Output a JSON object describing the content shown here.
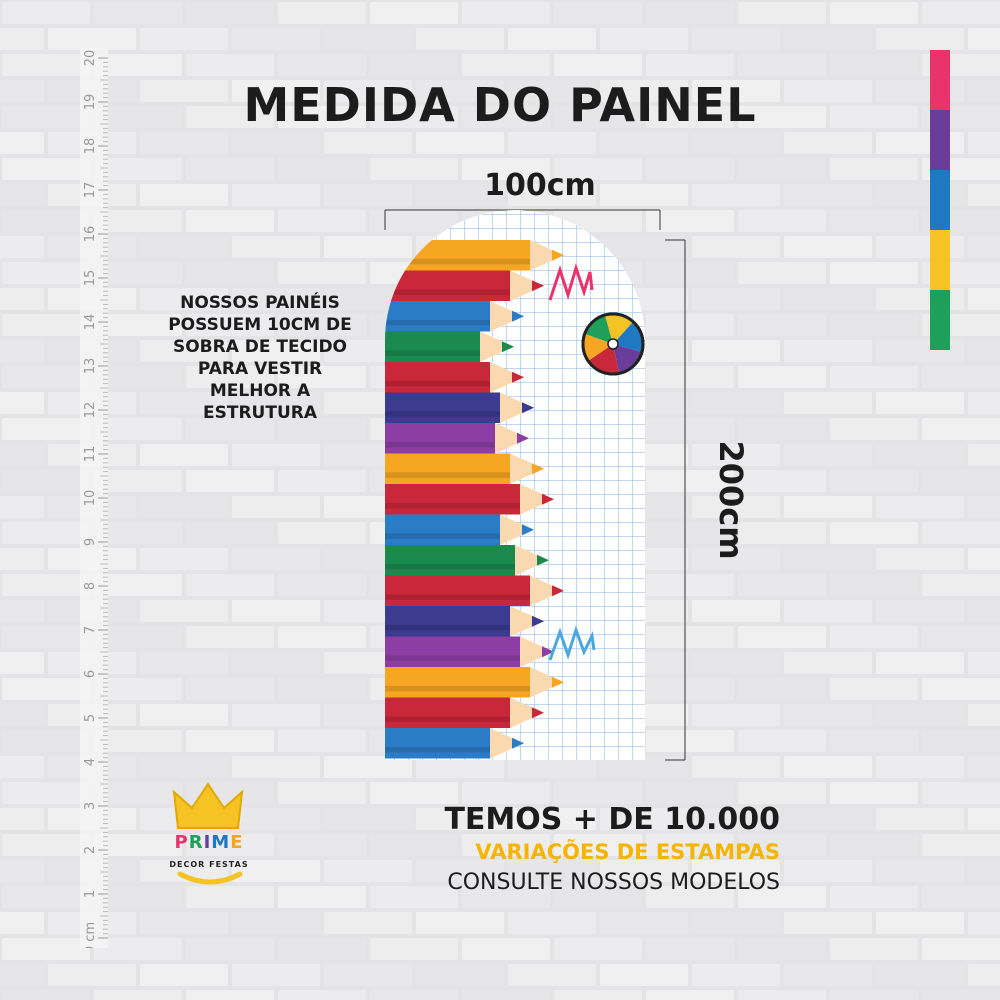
{
  "title": "MEDIDA DO PAINEL",
  "dimensions": {
    "width_label": "100cm",
    "height_label": "200cm"
  },
  "note_lines": [
    "NOSSOS PAINÉIS",
    "POSSUEM 10CM DE",
    "SOBRA DE TECIDO",
    "PARA VESTIR",
    "MELHOR A",
    "ESTRUTURA"
  ],
  "promo": {
    "line1": "TEMOS + DE 10.000",
    "line2": "VARIAÇÕES DE ESTAMPAS",
    "line3": "CONSULTE NOSSOS MODELOS"
  },
  "ruler": {
    "labels": [
      "0 cm",
      "1",
      "2",
      "3",
      "4",
      "5",
      "6",
      "7",
      "8",
      "9",
      "10",
      "11",
      "12",
      "13",
      "14",
      "15",
      "16",
      "17",
      "18",
      "19",
      "20"
    ]
  },
  "logo": {
    "letters": [
      "P",
      "R",
      "I",
      "M",
      "E"
    ],
    "subtitle": "DECOR FESTAS"
  },
  "colors": {
    "swatches": [
      "#e8336d",
      "#6a3d9a",
      "#1f78c1",
      "#f6c324",
      "#1fa05a"
    ],
    "pencils": [
      "#f6a623",
      "#c9273a",
      "#2a7cc7",
      "#1a8a4e",
      "#c9273a",
      "#3b3b8f",
      "#8c3ea4",
      "#f6a623",
      "#c9273a",
      "#2a7cc7",
      "#1a8a4e",
      "#c9273a",
      "#3b3b8f",
      "#8c3ea4",
      "#f6a623",
      "#c9273a",
      "#2a7cc7"
    ],
    "logo_letters": [
      "#e8336d",
      "#1fa05a",
      "#6a3d9a",
      "#1f78c1",
      "#f6a623"
    ]
  },
  "icons": [
    "beach-ball-icon",
    "crown-icon"
  ]
}
